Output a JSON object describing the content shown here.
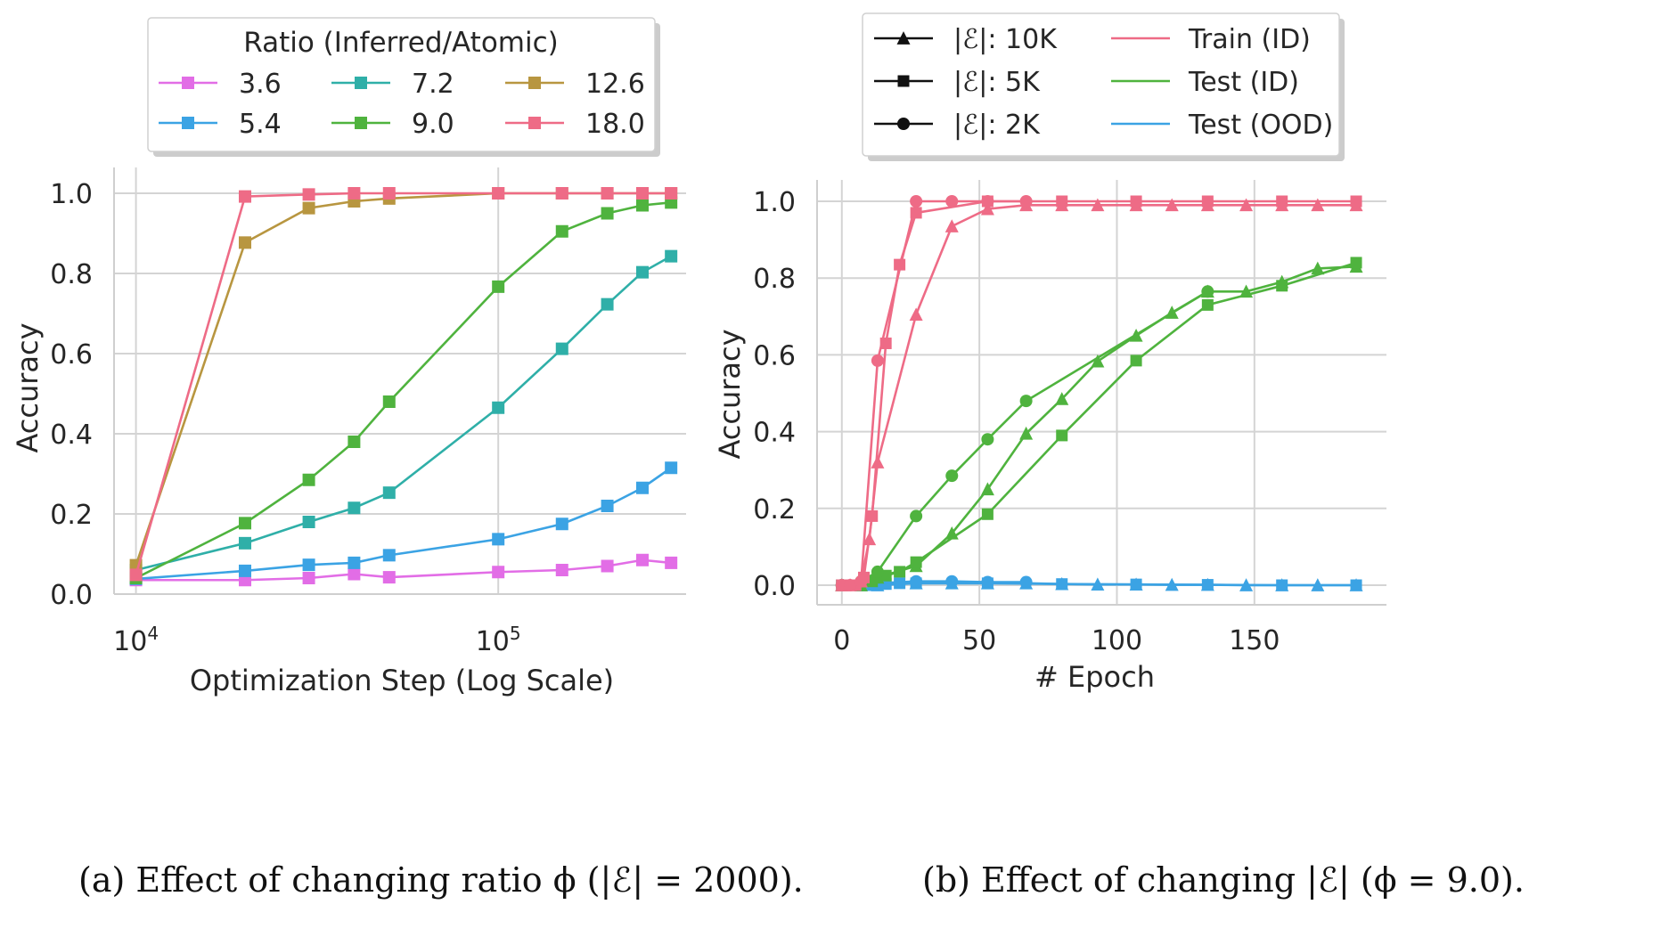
{
  "colors": {
    "3.6": "#e26de6",
    "5.4": "#3ba3e4",
    "7.2": "#2fafa8",
    "9.0": "#4fb33e",
    "12.6": "#b89640",
    "18.0": "#ee6b86",
    "train": "#ee6b86",
    "test_id": "#4fb33e",
    "test_ood": "#3ba3e4"
  },
  "chart_data": [
    {
      "type": "line",
      "caption": "(a) Effect of changing ratio ϕ (|ℰ| = 2000).",
      "xlabel": "Optimization Step (Log Scale)",
      "ylabel": "Accuracy",
      "xscale": "log",
      "xlim": [
        8700,
        330000
      ],
      "ylim": [
        0,
        1.0
      ],
      "xticks": [
        {
          "value": 10000,
          "base": "10",
          "exp": "4"
        },
        {
          "value": 100000,
          "base": "10",
          "exp": "5"
        }
      ],
      "yticks": [
        "0.0",
        "0.2",
        "0.4",
        "0.6",
        "0.8",
        "1.0"
      ],
      "grid": true,
      "legend": {
        "title": "Ratio (Inferred/Atomic)",
        "placement": "top-center",
        "columns": 3
      },
      "x": [
        10000,
        20000,
        30000,
        40000,
        50000,
        100000,
        150000,
        200000,
        250000,
        300000
      ],
      "series": [
        {
          "name": "3.6",
          "marker": "square",
          "values": [
            0.035,
            0.035,
            0.04,
            0.05,
            0.042,
            0.055,
            0.06,
            0.07,
            0.085,
            0.078
          ]
        },
        {
          "name": "5.4",
          "marker": "square",
          "values": [
            0.038,
            0.058,
            0.073,
            0.078,
            0.097,
            0.137,
            0.175,
            0.22,
            0.265,
            0.315
          ]
        },
        {
          "name": "7.2",
          "marker": "square",
          "values": [
            0.06,
            0.127,
            0.18,
            0.215,
            0.253,
            0.465,
            0.612,
            0.723,
            0.803,
            0.843
          ]
        },
        {
          "name": "9.0",
          "marker": "square",
          "values": [
            0.04,
            0.177,
            0.285,
            0.38,
            0.48,
            0.767,
            0.905,
            0.95,
            0.97,
            0.977
          ]
        },
        {
          "name": "12.6",
          "marker": "square",
          "values": [
            0.072,
            0.877,
            0.963,
            0.98,
            0.987,
            1.0,
            1.0,
            1.0,
            1.0,
            1.0
          ]
        },
        {
          "name": "18.0",
          "marker": "square",
          "values": [
            0.048,
            0.992,
            0.997,
            1.0,
            1.0,
            1.0,
            1.0,
            1.0,
            1.0,
            1.0
          ]
        }
      ]
    },
    {
      "type": "line",
      "caption": "(b) Effect of changing |ℰ| (ϕ = 9.0).",
      "xlabel": "# Epoch",
      "ylabel": "Accuracy",
      "xlim": [
        -9,
        198
      ],
      "ylim": [
        0,
        1.0
      ],
      "xticks": [
        "0",
        "50",
        "100",
        "150"
      ],
      "yticks": [
        "0.0",
        "0.2",
        "0.4",
        "0.6",
        "0.8",
        "1.0"
      ],
      "grid": true,
      "legend": {
        "placement": "top-center",
        "markers": [
          {
            "label": "|ℰ|: 10K",
            "marker": "triangle"
          },
          {
            "label": "|ℰ|: 5K",
            "marker": "square"
          },
          {
            "label": "|ℰ|: 2K",
            "marker": "circle"
          }
        ],
        "lines": [
          {
            "label": "Train (ID)",
            "color_key": "train"
          },
          {
            "label": "Test (ID)",
            "color_key": "test_id"
          },
          {
            "label": "Test (OOD)",
            "color_key": "test_ood"
          }
        ]
      },
      "series": [
        {
          "name": "Train (ID)",
          "group": "10K",
          "marker": "triangle",
          "color_key": "train",
          "x": [
            0,
            3,
            7,
            10,
            13,
            27,
            40,
            53,
            67,
            80,
            93,
            107,
            120,
            133,
            147,
            160,
            173,
            187
          ],
          "y": [
            0,
            0,
            0.01,
            0.12,
            0.32,
            0.705,
            0.935,
            0.98,
            0.99,
            0.99,
            0.99,
            0.99,
            0.99,
            0.99,
            0.99,
            0.99,
            0.99,
            0.99
          ]
        },
        {
          "name": "Train (ID)",
          "group": "5K",
          "marker": "square",
          "color_key": "train",
          "x": [
            0,
            3,
            5,
            8,
            11,
            16,
            21,
            27,
            53,
            80,
            107,
            133,
            160,
            187
          ],
          "y": [
            0,
            0,
            0,
            0.02,
            0.18,
            0.63,
            0.835,
            0.97,
            1.0,
            1.0,
            1.0,
            1.0,
            1.0,
            1.0
          ]
        },
        {
          "name": "Train (ID)",
          "group": "2K",
          "marker": "circle",
          "color_key": "train",
          "x": [
            0,
            3,
            7,
            13,
            27,
            40,
            53,
            67
          ],
          "y": [
            0,
            0,
            0.01,
            0.585,
            1.0,
            1.0,
            1.0,
            1.0
          ]
        },
        {
          "name": "Test (ID)",
          "group": "10K",
          "marker": "triangle",
          "color_key": "test_id",
          "x": [
            0,
            7,
            13,
            27,
            40,
            53,
            67,
            80,
            93,
            107,
            120,
            133,
            147,
            160,
            173,
            187
          ],
          "y": [
            0,
            0,
            0.02,
            0.05,
            0.135,
            0.25,
            0.395,
            0.485,
            0.583,
            0.65,
            0.71,
            0.765,
            0.765,
            0.79,
            0.825,
            0.83
          ]
        },
        {
          "name": "Test (ID)",
          "group": "5K",
          "marker": "square",
          "color_key": "test_id",
          "x": [
            0,
            5,
            11,
            16,
            21,
            27,
            53,
            80,
            107,
            133,
            160,
            187
          ],
          "y": [
            0,
            0,
            0.01,
            0.025,
            0.035,
            0.06,
            0.185,
            0.39,
            0.585,
            0.73,
            0.78,
            0.84
          ]
        },
        {
          "name": "Test (ID)",
          "group": "2K",
          "marker": "circle",
          "color_key": "test_id",
          "x": [
            0,
            7,
            13,
            27,
            40,
            53,
            67,
            133
          ],
          "y": [
            0,
            0.01,
            0.035,
            0.18,
            0.285,
            0.38,
            0.48,
            0.765
          ]
        },
        {
          "name": "Test (OOD)",
          "group": "10K",
          "marker": "triangle",
          "color_key": "test_ood",
          "x": [
            0,
            7,
            13,
            27,
            40,
            53,
            67,
            80,
            93,
            107,
            120,
            133,
            147,
            160,
            173,
            187
          ],
          "y": [
            0,
            0,
            0,
            0.005,
            0.005,
            0.005,
            0.005,
            0.003,
            0.002,
            0.002,
            0.001,
            0.001,
            0,
            0,
            0,
            0
          ]
        },
        {
          "name": "Test (OOD)",
          "group": "5K",
          "marker": "square",
          "color_key": "test_ood",
          "x": [
            0,
            5,
            11,
            16,
            21,
            27,
            53,
            80,
            107,
            133,
            160,
            187
          ],
          "y": [
            0,
            0,
            0,
            0.003,
            0.005,
            0.005,
            0.005,
            0.003,
            0.002,
            0.001,
            0,
            0
          ]
        },
        {
          "name": "Test (OOD)",
          "group": "2K",
          "marker": "circle",
          "color_key": "test_ood",
          "x": [
            0,
            7,
            13,
            27,
            40,
            53,
            67
          ],
          "y": [
            0,
            0,
            0.005,
            0.01,
            0.01,
            0.008,
            0.008
          ]
        }
      ]
    }
  ]
}
